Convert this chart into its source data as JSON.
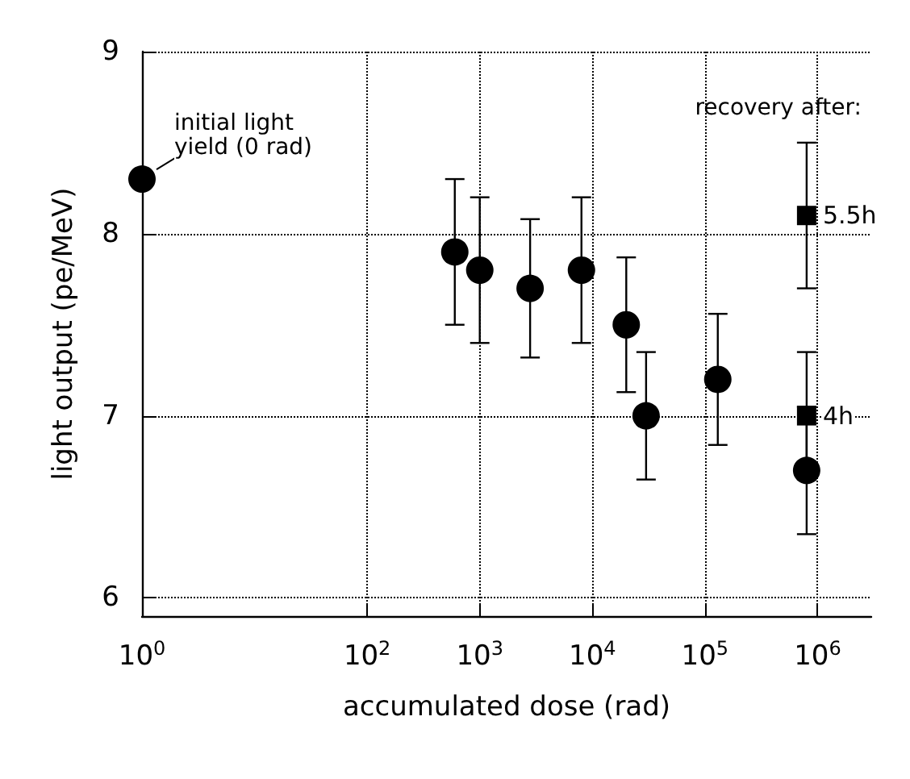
{
  "chart_data": {
    "type": "scatter",
    "xlabel": "accumulated dose (rad)",
    "ylabel": "light output (pe/MeV)",
    "log": "x",
    "xlim": [
      1,
      3000000
    ],
    "xticks": [
      {
        "value": 1,
        "label": "10$^{0}$"
      },
      {
        "value": 100,
        "label": "10$^{2}$"
      },
      {
        "value": 1000,
        "label": "10$^{3}$"
      },
      {
        "value": 10000,
        "label": "10$^{4}$"
      },
      {
        "value": 100000,
        "label": "10$^{5}$"
      },
      {
        "value": 1000000,
        "label": "10$^{6}$"
      }
    ],
    "ylim": [
      5.9,
      9
    ],
    "yticks": [
      6,
      7,
      8,
      9
    ],
    "grid": true,
    "legend": false,
    "series": [
      {
        "color": "#000000",
        "marker": "circle",
        "x": [
          1,
          600,
          1000,
          2800,
          8000,
          20000,
          30000,
          130000,
          800000
        ],
        "values": [
          8.3,
          7.9,
          7.8,
          7.7,
          7.8,
          7.5,
          7.0,
          7.2,
          6.7
        ],
        "errors": [
          null,
          0.4,
          0.4,
          0.38,
          0.4,
          0.37,
          0.35,
          0.36,
          0.35
        ]
      },
      {
        "name": "5.5h",
        "color": "#000000",
        "marker": "square",
        "x": [
          800000
        ],
        "values": [
          8.1
        ],
        "errors": [
          0.4
        ]
      },
      {
        "name": "4h",
        "color": "#000000",
        "marker": "square",
        "x": [
          800000
        ],
        "values": [
          7.0
        ],
        "errors": [
          0.35
        ]
      }
    ],
    "annotations": [
      {
        "text": "initial light yield (0 rad)",
        "x": 1,
        "y": 8.3
      },
      "recovery after:"
    ]
  }
}
